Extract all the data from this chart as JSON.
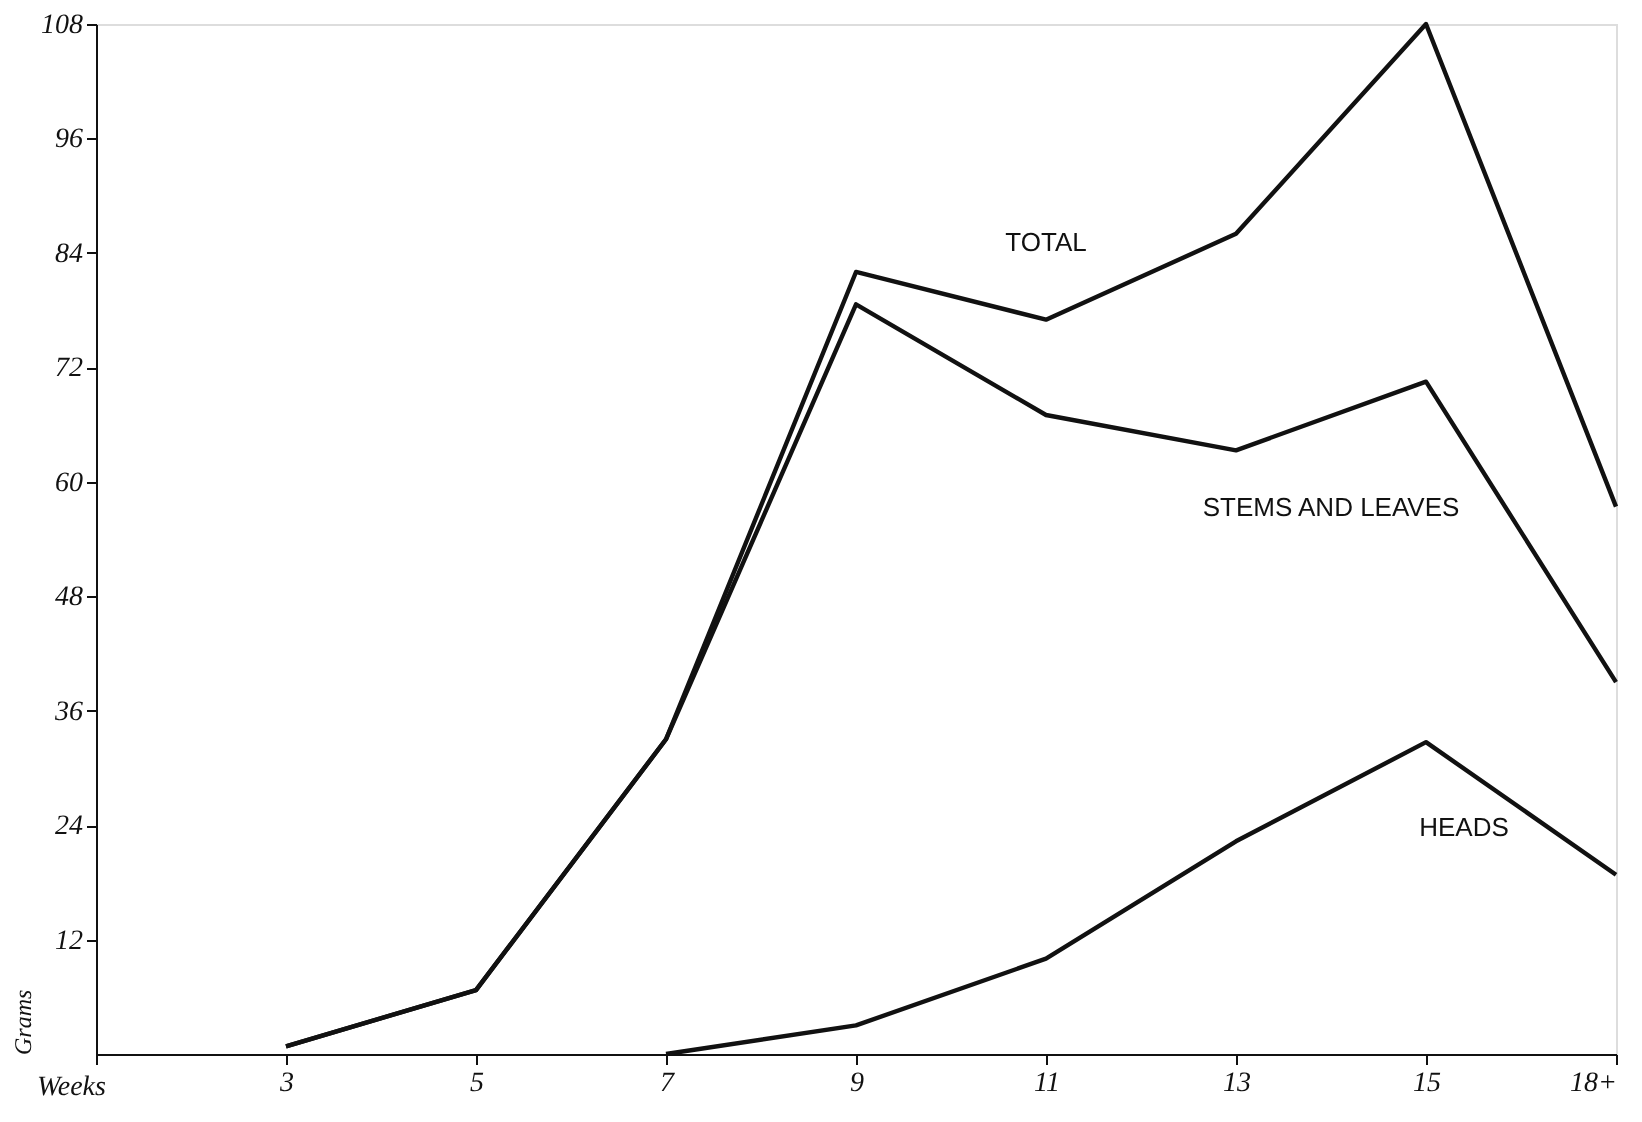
{
  "chart_data": {
    "type": "line",
    "xlabel": "Weeks",
    "ylabel": "Grams",
    "categories": [
      null,
      "3",
      "5",
      "7",
      "9",
      "11",
      "13",
      "15",
      "18+"
    ],
    "ylim": [
      0,
      108
    ],
    "yticks": [
      12,
      24,
      36,
      48,
      60,
      72,
      84,
      96,
      108
    ],
    "grid": false,
    "marker": "none",
    "line_style": "solid",
    "series": [
      {
        "name": "TOTAL",
        "color": "#111111",
        "values": [
          null,
          0.8,
          6.7,
          33,
          82,
          77,
          86,
          108,
          57.4
        ]
      },
      {
        "name": "STEMS AND LEAVES",
        "color": "#111111",
        "values": [
          null,
          0.8,
          6.7,
          33,
          78.6,
          67,
          63.3,
          70.5,
          39
        ]
      },
      {
        "name": "HEADS",
        "color": "#111111",
        "values": [
          null,
          null,
          null,
          0,
          3,
          10,
          22.3,
          32.7,
          18.8
        ]
      }
    ]
  }
}
